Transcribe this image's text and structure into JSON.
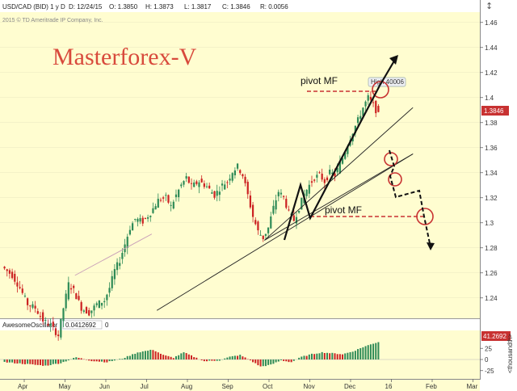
{
  "header": {
    "symbol": "USD/CAD (BID) 1 y D",
    "date": "D: 12/24/15",
    "open": "O: 1.3850",
    "high": "H: 1.3873",
    "low": "L: 1.3817",
    "close": "C: 1.3846",
    "range": "R: 0.0056",
    "copyright": "2015 © TD Ameritrade IP Company, Inc."
  },
  "overlay": {
    "watermark": "Masterforex-V",
    "pivot_label_upper": "pivot MF",
    "pivot_label_lower": "pivot MF",
    "high_badge": "High 40006",
    "price_tag": "1.3846",
    "ao_tag": "41.2692",
    "ao_unit": "<thousandth>"
  },
  "indicator": {
    "name": "AwesomeOscillator",
    "value": "0.0412692",
    "param": "0"
  },
  "colors": {
    "background": "#fffdd0",
    "bull": "#2e8b57",
    "bear": "#cc2222",
    "annotation": "#c83232",
    "watermark": "#d84a3c"
  },
  "chart_data": {
    "type": "candlestick",
    "price_axis": {
      "ylim": [
        1.225,
        1.465
      ],
      "ticks": [
        "1.46",
        "1.44",
        "1.42",
        "1.4",
        "1.38",
        "1.36",
        "1.34",
        "1.32",
        "1.3",
        "1.28",
        "1.26",
        "1.24"
      ]
    },
    "time_axis": {
      "labels": [
        "Apr",
        "May",
        "Jun",
        "Jul",
        "Aug",
        "Sep",
        "Oct",
        "Nov",
        "Dec",
        "16",
        "Feb",
        "Mar"
      ]
    },
    "price_path": [
      [
        0,
        1.265
      ],
      [
        4,
        1.258
      ],
      [
        7,
        1.248
      ],
      [
        10,
        1.235
      ],
      [
        13,
        1.232
      ],
      [
        16,
        1.222
      ],
      [
        19,
        1.218
      ],
      [
        22,
        1.21
      ],
      [
        24,
        1.232
      ],
      [
        26,
        1.251
      ],
      [
        28,
        1.246
      ],
      [
        31,
        1.232
      ],
      [
        34,
        1.228
      ],
      [
        37,
        1.235
      ],
      [
        40,
        1.238
      ],
      [
        42,
        1.248
      ],
      [
        44,
        1.262
      ],
      [
        46,
        1.27
      ],
      [
        48,
        1.283
      ],
      [
        50,
        1.296
      ],
      [
        52,
        1.303
      ],
      [
        55,
        1.301
      ],
      [
        58,
        1.308
      ],
      [
        61,
        1.318
      ],
      [
        64,
        1.32
      ],
      [
        66,
        1.313
      ],
      [
        68,
        1.322
      ],
      [
        70,
        1.33
      ],
      [
        72,
        1.336
      ],
      [
        74,
        1.329
      ],
      [
        77,
        1.333
      ],
      [
        80,
        1.329
      ],
      [
        83,
        1.322
      ],
      [
        86,
        1.33
      ],
      [
        88,
        1.333
      ],
      [
        90,
        1.341
      ],
      [
        92,
        1.345
      ],
      [
        94,
        1.338
      ],
      [
        96,
        1.322
      ],
      [
        98,
        1.305
      ],
      [
        100,
        1.293
      ],
      [
        102,
        1.288
      ],
      [
        104,
        1.296
      ],
      [
        106,
        1.312
      ],
      [
        108,
        1.325
      ],
      [
        110,
        1.32
      ],
      [
        112,
        1.308
      ],
      [
        114,
        1.302
      ],
      [
        116,
        1.312
      ],
      [
        118,
        1.323
      ],
      [
        120,
        1.33
      ],
      [
        122,
        1.336
      ],
      [
        124,
        1.338
      ],
      [
        126,
        1.333
      ],
      [
        128,
        1.34
      ],
      [
        130,
        1.338
      ],
      [
        133,
        1.352
      ],
      [
        136,
        1.368
      ],
      [
        139,
        1.382
      ],
      [
        141,
        1.392
      ],
      [
        143,
        1.4
      ],
      [
        145,
        1.394
      ],
      [
        147,
        1.386
      ]
    ],
    "ao_axis": {
      "ticks": [
        "25",
        "0",
        "-25"
      ]
    },
    "ao_path": [
      [
        0,
        -6
      ],
      [
        8,
        -10
      ],
      [
        16,
        -14
      ],
      [
        22,
        -8
      ],
      [
        28,
        5
      ],
      [
        34,
        -3
      ],
      [
        40,
        -6
      ],
      [
        46,
        2
      ],
      [
        52,
        16
      ],
      [
        58,
        22
      ],
      [
        62,
        10
      ],
      [
        66,
        4
      ],
      [
        70,
        16
      ],
      [
        74,
        6
      ],
      [
        78,
        -4
      ],
      [
        84,
        -2
      ],
      [
        88,
        6
      ],
      [
        92,
        10
      ],
      [
        96,
        -2
      ],
      [
        100,
        -16
      ],
      [
        104,
        -12
      ],
      [
        108,
        -2
      ],
      [
        112,
        -6
      ],
      [
        116,
        6
      ],
      [
        120,
        12
      ],
      [
        124,
        16
      ],
      [
        128,
        14
      ],
      [
        132,
        12
      ],
      [
        136,
        18
      ],
      [
        140,
        28
      ],
      [
        144,
        36
      ],
      [
        147,
        41
      ]
    ],
    "trendlines": [
      {
        "from": [
          60,
          1.23
        ],
        "to": [
          160,
          1.355
        ]
      },
      {
        "from": [
          102,
          1.286
        ],
        "to": [
          160,
          1.355
        ]
      },
      {
        "from": [
          102,
          1.286
        ],
        "to": [
          160,
          1.392
        ]
      },
      {
        "from": [
          28,
          1.258
        ],
        "to": [
          58,
          1.291
        ]
      }
    ],
    "pivots": [
      1.404,
      1.304
    ]
  }
}
